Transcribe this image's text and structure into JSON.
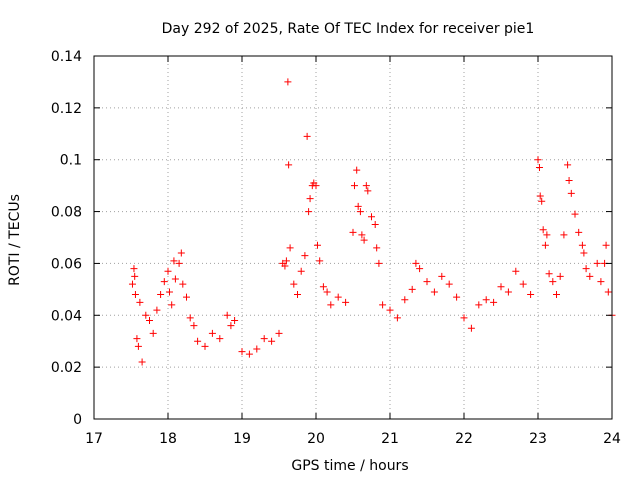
{
  "chart_data": {
    "type": "scatter",
    "title": "Day 292 of 2025, Rate Of TEC Index for receiver pie1",
    "xlabel": "GPS time / hours",
    "ylabel": "ROTI / TECUs",
    "xlim": [
      17,
      24
    ],
    "ylim": [
      0,
      0.14
    ],
    "xticks": [
      17,
      18,
      19,
      20,
      21,
      22,
      23,
      24
    ],
    "xtick_labels": [
      "17",
      "18",
      "19",
      "20",
      "21",
      "22",
      "23",
      "24"
    ],
    "yticks": [
      0,
      0.02,
      0.04,
      0.06,
      0.08,
      0.1,
      0.12,
      0.14
    ],
    "ytick_labels": [
      "0",
      "0.02",
      "0.04",
      "0.06",
      "0.08",
      "0.1",
      "0.12",
      "0.14"
    ],
    "grid": true,
    "marker": "+",
    "color": "#ff0000",
    "series": [
      {
        "name": "pie1",
        "points": [
          [
            17.52,
            0.052
          ],
          [
            17.54,
            0.058
          ],
          [
            17.55,
            0.055
          ],
          [
            17.56,
            0.048
          ],
          [
            17.58,
            0.031
          ],
          [
            17.6,
            0.028
          ],
          [
            17.62,
            0.045
          ],
          [
            17.65,
            0.022
          ],
          [
            17.7,
            0.04
          ],
          [
            17.75,
            0.038
          ],
          [
            17.8,
            0.033
          ],
          [
            17.85,
            0.042
          ],
          [
            17.9,
            0.048
          ],
          [
            17.95,
            0.053
          ],
          [
            18.0,
            0.057
          ],
          [
            18.02,
            0.049
          ],
          [
            18.05,
            0.044
          ],
          [
            18.08,
            0.061
          ],
          [
            18.1,
            0.054
          ],
          [
            18.15,
            0.06
          ],
          [
            18.18,
            0.064
          ],
          [
            18.2,
            0.052
          ],
          [
            18.25,
            0.047
          ],
          [
            18.3,
            0.039
          ],
          [
            18.35,
            0.036
          ],
          [
            18.4,
            0.03
          ],
          [
            18.5,
            0.028
          ],
          [
            18.6,
            0.033
          ],
          [
            18.7,
            0.031
          ],
          [
            18.8,
            0.04
          ],
          [
            18.85,
            0.036
          ],
          [
            18.9,
            0.038
          ],
          [
            19.0,
            0.026
          ],
          [
            19.1,
            0.025
          ],
          [
            19.2,
            0.027
          ],
          [
            19.3,
            0.031
          ],
          [
            19.4,
            0.03
          ],
          [
            19.5,
            0.033
          ],
          [
            19.55,
            0.06
          ],
          [
            19.58,
            0.059
          ],
          [
            19.6,
            0.061
          ],
          [
            19.62,
            0.13
          ],
          [
            19.63,
            0.098
          ],
          [
            19.65,
            0.066
          ],
          [
            19.7,
            0.052
          ],
          [
            19.75,
            0.048
          ],
          [
            19.8,
            0.057
          ],
          [
            19.85,
            0.063
          ],
          [
            19.88,
            0.109
          ],
          [
            19.9,
            0.08
          ],
          [
            19.92,
            0.085
          ],
          [
            19.95,
            0.09
          ],
          [
            19.97,
            0.091
          ],
          [
            20.0,
            0.09
          ],
          [
            20.02,
            0.067
          ],
          [
            20.05,
            0.061
          ],
          [
            20.1,
            0.051
          ],
          [
            20.15,
            0.049
          ],
          [
            20.2,
            0.044
          ],
          [
            20.3,
            0.047
          ],
          [
            20.4,
            0.045
          ],
          [
            20.5,
            0.072
          ],
          [
            20.52,
            0.09
          ],
          [
            20.55,
            0.096
          ],
          [
            20.57,
            0.082
          ],
          [
            20.6,
            0.08
          ],
          [
            20.62,
            0.071
          ],
          [
            20.65,
            0.069
          ],
          [
            20.68,
            0.09
          ],
          [
            20.7,
            0.088
          ],
          [
            20.75,
            0.078
          ],
          [
            20.8,
            0.075
          ],
          [
            20.82,
            0.066
          ],
          [
            20.85,
            0.06
          ],
          [
            20.9,
            0.044
          ],
          [
            21.0,
            0.042
          ],
          [
            21.1,
            0.039
          ],
          [
            21.2,
            0.046
          ],
          [
            21.3,
            0.05
          ],
          [
            21.35,
            0.06
          ],
          [
            21.4,
            0.058
          ],
          [
            21.5,
            0.053
          ],
          [
            21.6,
            0.049
          ],
          [
            21.7,
            0.055
          ],
          [
            21.8,
            0.052
          ],
          [
            21.9,
            0.047
          ],
          [
            22.0,
            0.039
          ],
          [
            22.1,
            0.035
          ],
          [
            22.2,
            0.044
          ],
          [
            22.3,
            0.046
          ],
          [
            22.4,
            0.045
          ],
          [
            22.5,
            0.051
          ],
          [
            22.6,
            0.049
          ],
          [
            22.7,
            0.057
          ],
          [
            22.8,
            0.052
          ],
          [
            22.9,
            0.048
          ],
          [
            23.0,
            0.1
          ],
          [
            23.02,
            0.097
          ],
          [
            23.03,
            0.086
          ],
          [
            23.05,
            0.084
          ],
          [
            23.07,
            0.073
          ],
          [
            23.1,
            0.067
          ],
          [
            23.12,
            0.071
          ],
          [
            23.15,
            0.056
          ],
          [
            23.2,
            0.053
          ],
          [
            23.25,
            0.048
          ],
          [
            23.3,
            0.055
          ],
          [
            23.35,
            0.071
          ],
          [
            23.4,
            0.098
          ],
          [
            23.42,
            0.092
          ],
          [
            23.45,
            0.087
          ],
          [
            23.5,
            0.079
          ],
          [
            23.55,
            0.072
          ],
          [
            23.6,
            0.067
          ],
          [
            23.62,
            0.064
          ],
          [
            23.65,
            0.058
          ],
          [
            23.7,
            0.055
          ],
          [
            23.8,
            0.06
          ],
          [
            23.85,
            0.053
          ],
          [
            23.9,
            0.06
          ],
          [
            23.92,
            0.067
          ],
          [
            23.95,
            0.049
          ],
          [
            24.0,
            0.04
          ]
        ]
      }
    ]
  }
}
